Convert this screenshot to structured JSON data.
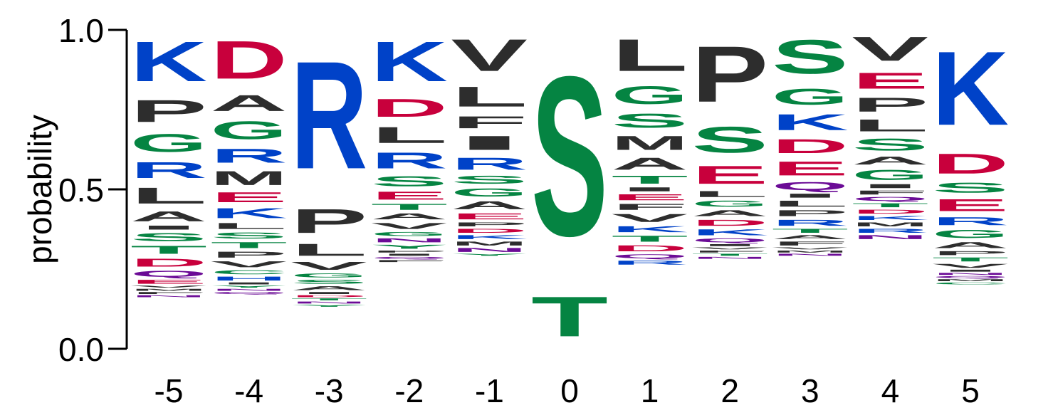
{
  "chart_data": {
    "type": "sequence-logo",
    "ylabel": "probability",
    "ylim": [
      0,
      1
    ],
    "y_ticks": [
      "0.0",
      "0.5",
      "1.0"
    ],
    "y_tick_values": [
      0,
      0.5,
      1
    ],
    "positions": [
      "-5",
      "-4",
      "-3",
      "-2",
      "-1",
      "0",
      "1",
      "2",
      "3",
      "4",
      "5"
    ],
    "colors": {
      "basic": "#0042c8",
      "acidic": "#c8003c",
      "polar": "#058442",
      "hydrophobic": "#2d2d2d",
      "amide": "#6b0b96"
    },
    "residue_class": {
      "K": "basic",
      "R": "basic",
      "H": "basic",
      "D": "acidic",
      "E": "acidic",
      "S": "polar",
      "T": "polar",
      "G": "polar",
      "C": "polar",
      "Y": "polar",
      "P": "hydrophobic",
      "L": "hydrophobic",
      "A": "hydrophobic",
      "I": "hydrophobic",
      "M": "hydrophobic",
      "V": "hydrophobic",
      "F": "hydrophobic",
      "W": "hydrophobic",
      "Q": "amide",
      "N": "amide"
    },
    "stacks": [
      [
        [
          "K",
          0.2
        ],
        [
          "P",
          0.11
        ],
        [
          "G",
          0.09
        ],
        [
          "R",
          0.08
        ],
        [
          "L",
          0.08
        ],
        [
          "A",
          0.05
        ],
        [
          "I",
          0.02
        ],
        [
          "S",
          0.04
        ],
        [
          "T",
          0.04
        ],
        [
          "D",
          0.04
        ],
        [
          "Q",
          0.03
        ],
        [
          "E",
          0.02
        ],
        [
          "V",
          0.01
        ],
        [
          "M",
          0.01
        ],
        [
          "F",
          0.01
        ],
        [
          "N",
          0.01
        ]
      ],
      [
        [
          "D",
          0.19
        ],
        [
          "A",
          0.08
        ],
        [
          "G",
          0.09
        ],
        [
          "R",
          0.07
        ],
        [
          "M",
          0.07
        ],
        [
          "E",
          0.05
        ],
        [
          "K",
          0.05
        ],
        [
          "L",
          0.03
        ],
        [
          "S",
          0.03
        ],
        [
          "T",
          0.03
        ],
        [
          "P",
          0.03
        ],
        [
          "V",
          0.03
        ],
        [
          "C",
          0.02
        ],
        [
          "H",
          0.02
        ],
        [
          "I",
          0.01
        ],
        [
          "Y",
          0.01
        ],
        [
          "N",
          0.01
        ],
        [
          "Q",
          0.01
        ]
      ],
      [
        [
          "R",
          0.54
        ],
        [
          "P",
          0.12
        ],
        [
          "L",
          0.06
        ],
        [
          "V",
          0.04
        ],
        [
          "G",
          0.02
        ],
        [
          "S",
          0.02
        ],
        [
          "A",
          0.02
        ],
        [
          "I",
          0.01
        ],
        [
          "D",
          0.01
        ],
        [
          "T",
          0.01
        ],
        [
          "N",
          0.01
        ],
        [
          "Y",
          0.01
        ]
      ],
      [
        [
          "K",
          0.2
        ],
        [
          "D",
          0.09
        ],
        [
          "L",
          0.08
        ],
        [
          "R",
          0.08
        ],
        [
          "S",
          0.05
        ],
        [
          "E",
          0.04
        ],
        [
          "T",
          0.03
        ],
        [
          "A",
          0.03
        ],
        [
          "V",
          0.03
        ],
        [
          "G",
          0.02
        ],
        [
          "N",
          0.02
        ],
        [
          "Y",
          0.02
        ],
        [
          "P",
          0.01
        ],
        [
          "I",
          0.01
        ],
        [
          "Q",
          0.01
        ],
        [
          "F",
          0.01
        ]
      ],
      [
        [
          "V",
          0.16
        ],
        [
          "L",
          0.1
        ],
        [
          "F",
          0.06
        ],
        [
          "I",
          0.07
        ],
        [
          "R",
          0.06
        ],
        [
          "S",
          0.04
        ],
        [
          "G",
          0.04
        ],
        [
          "A",
          0.04
        ],
        [
          "E",
          0.03
        ],
        [
          "P",
          0.02
        ],
        [
          "D",
          0.02
        ],
        [
          "K",
          0.02
        ],
        [
          "M",
          0.02
        ],
        [
          "N",
          0.02
        ],
        [
          "Y",
          0.01
        ]
      ],
      [
        [
          "S",
          0.8
        ],
        [
          "T",
          0.2
        ]
      ],
      [
        [
          "L",
          0.16
        ],
        [
          "G",
          0.09
        ],
        [
          "S",
          0.07
        ],
        [
          "M",
          0.07
        ],
        [
          "A",
          0.06
        ],
        [
          "T",
          0.04
        ],
        [
          "I",
          0.02
        ],
        [
          "E",
          0.03
        ],
        [
          "F",
          0.03
        ],
        [
          "V",
          0.04
        ],
        [
          "K",
          0.03
        ],
        [
          "T",
          0.03
        ],
        [
          "D",
          0.03
        ],
        [
          "Q",
          0.02
        ],
        [
          "R",
          0.02
        ]
      ],
      [
        [
          "P",
          0.28
        ],
        [
          "S",
          0.13
        ],
        [
          "E",
          0.09
        ],
        [
          "L",
          0.03
        ],
        [
          "G",
          0.03
        ],
        [
          "A",
          0.03
        ],
        [
          "D",
          0.03
        ],
        [
          "K",
          0.03
        ],
        [
          "Q",
          0.02
        ],
        [
          "I",
          0.01
        ],
        [
          "V",
          0.01
        ],
        [
          "F",
          0.01
        ],
        [
          "T",
          0.01
        ],
        [
          "N",
          0.01
        ]
      ],
      [
        [
          "S",
          0.17
        ],
        [
          "G",
          0.08
        ],
        [
          "K",
          0.08
        ],
        [
          "D",
          0.07
        ],
        [
          "E",
          0.07
        ],
        [
          "Q",
          0.04
        ],
        [
          "I",
          0.02
        ],
        [
          "L",
          0.03
        ],
        [
          "P",
          0.03
        ],
        [
          "R",
          0.03
        ],
        [
          "T",
          0.02
        ],
        [
          "A",
          0.02
        ],
        [
          "F",
          0.02
        ],
        [
          "V",
          0.01
        ],
        [
          "M",
          0.01
        ],
        [
          "N",
          0.01
        ]
      ],
      [
        [
          "V",
          0.12
        ],
        [
          "E",
          0.08
        ],
        [
          "P",
          0.07
        ],
        [
          "L",
          0.06
        ],
        [
          "S",
          0.06
        ],
        [
          "A",
          0.04
        ],
        [
          "G",
          0.05
        ],
        [
          "I",
          0.02
        ],
        [
          "F",
          0.02
        ],
        [
          "Q",
          0.02
        ],
        [
          "T",
          0.02
        ],
        [
          "D",
          0.02
        ],
        [
          "K",
          0.02
        ],
        [
          "M",
          0.02
        ],
        [
          "R",
          0.02
        ],
        [
          "N",
          0.02
        ]
      ],
      [
        [
          "K",
          0.37
        ],
        [
          "D",
          0.1
        ],
        [
          "S",
          0.05
        ],
        [
          "E",
          0.06
        ],
        [
          "R",
          0.04
        ],
        [
          "G",
          0.04
        ],
        [
          "A",
          0.03
        ],
        [
          "P",
          0.02
        ],
        [
          "T",
          0.02
        ],
        [
          "V",
          0.02
        ],
        [
          "I",
          0.01
        ],
        [
          "N",
          0.01
        ],
        [
          "Q",
          0.01
        ],
        [
          "M",
          0.01
        ],
        [
          "C",
          0.01
        ]
      ]
    ]
  }
}
